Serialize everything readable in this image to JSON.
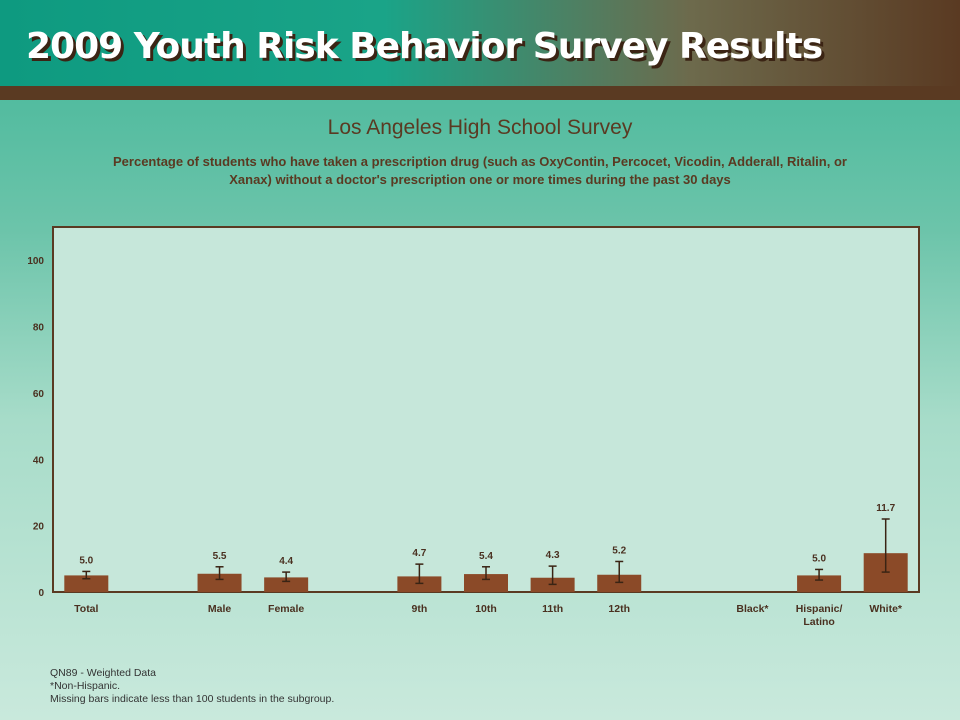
{
  "header": {
    "banner_title": "2009 Youth Risk Behavior Survey Results"
  },
  "colors": {
    "bar": "#8b4a28",
    "plot_bg": "#c6e7da",
    "frame": "#5a3a22",
    "text": "#5a3a22"
  },
  "chart_data": {
    "type": "bar",
    "title": "Los Angeles High School Survey",
    "subtitle": "Percentage of students who have taken a prescription drug (such as OxyContin, Percocet, Vicodin, Adderall, Ritalin, or Xanax) without a doctor's prescription one or more times during the past 30 days",
    "categories": [
      "Total",
      "",
      "Male",
      "Female",
      "",
      "9th",
      "10th",
      "11th",
      "12th",
      "",
      "Black*",
      "Hispanic/ Latino",
      "White*"
    ],
    "category_lines": [
      [
        "Total"
      ],
      [],
      [
        "Male"
      ],
      [
        "Female"
      ],
      [],
      [
        "9th"
      ],
      [
        "10th"
      ],
      [
        "11th"
      ],
      [
        "12th"
      ],
      [],
      [
        "Black*"
      ],
      [
        "Hispanic/",
        "Latino"
      ],
      [
        "White*"
      ]
    ],
    "values": [
      5.0,
      null,
      5.5,
      4.4,
      null,
      4.7,
      5.4,
      4.3,
      5.2,
      null,
      null,
      5.0,
      11.7
    ],
    "value_labels": [
      "5.0",
      "",
      "5.5",
      "4.4",
      "",
      "4.7",
      "5.4",
      "4.3",
      "5.2",
      "",
      "",
      "5.0",
      "11.7"
    ],
    "ci_low": [
      4.0,
      null,
      3.8,
      3.2,
      null,
      2.6,
      3.8,
      2.3,
      2.9,
      null,
      null,
      3.6,
      6.0
    ],
    "ci_high": [
      6.2,
      null,
      7.6,
      6.0,
      null,
      8.4,
      7.6,
      7.8,
      9.2,
      null,
      null,
      6.8,
      22.0
    ],
    "ylim": [
      0,
      110
    ],
    "yticks": [
      0,
      20,
      40,
      60,
      80,
      100
    ],
    "ytick_labels": [
      "0",
      "20",
      "40",
      "60",
      "80",
      "100"
    ],
    "xlabel": "",
    "ylabel": "",
    "grid": false,
    "legend": "none"
  },
  "notes": [
    "QN89 - Weighted Data",
    "*Non-Hispanic.",
    "Missing bars indicate less than 100 students in the subgroup."
  ]
}
